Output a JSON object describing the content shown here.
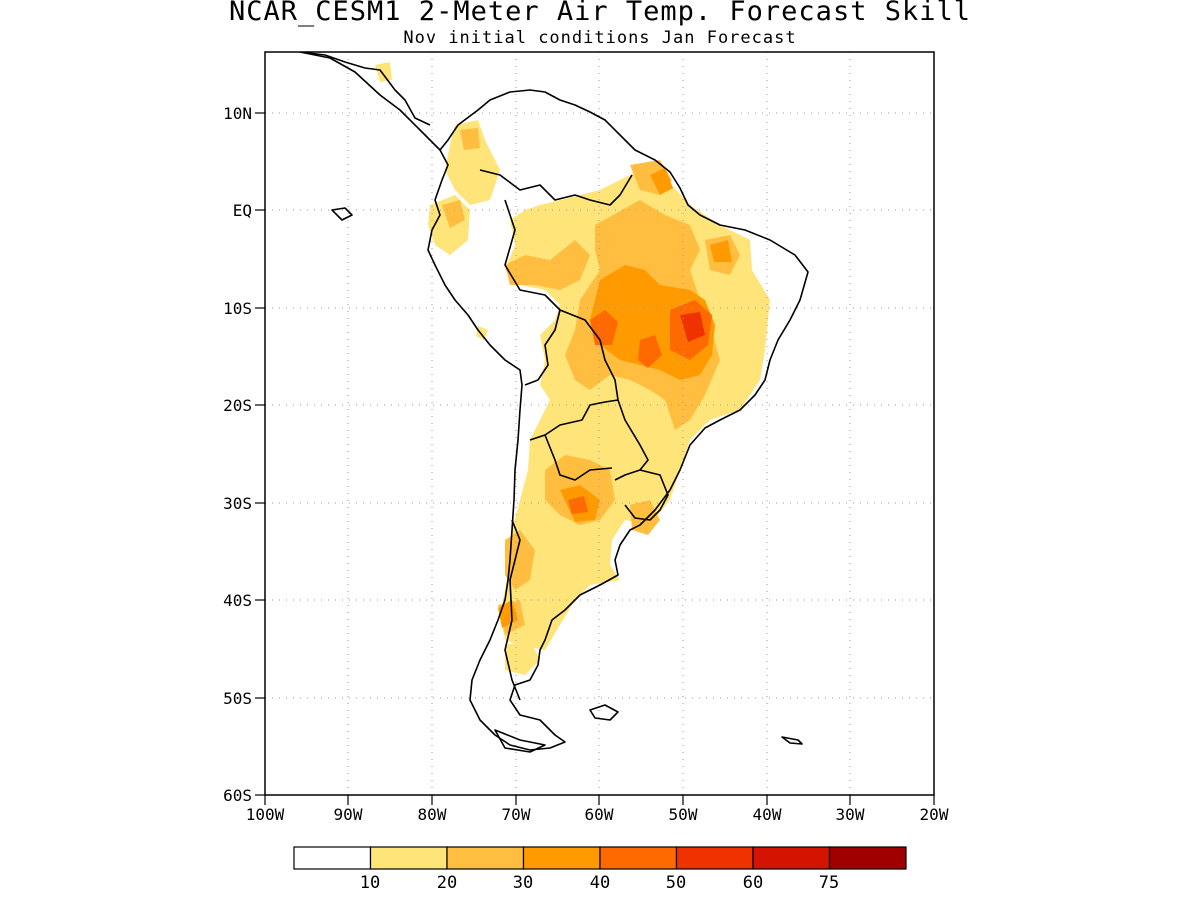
{
  "title": "NCAR_CESM1 2-Meter Air Temp. Forecast Skill",
  "subtitle": "Nov initial conditions  Jan Forecast",
  "map": {
    "lon_range": [
      -100,
      -20
    ],
    "lat_range": [
      -60,
      16
    ],
    "grid": true,
    "lat_ticks": [
      "10N",
      "EQ",
      "10S",
      "20S",
      "30S",
      "40S",
      "50S",
      "60S"
    ],
    "lon_ticks": [
      "100W",
      "90W",
      "80W",
      "70W",
      "60W",
      "50W",
      "40W",
      "30W",
      "20W"
    ]
  },
  "colorbar": {
    "colors": [
      "#ffffff",
      "#ffe47a",
      "#ffbe40",
      "#ff9a00",
      "#ff6a00",
      "#f03200",
      "#d41400",
      "#a00000"
    ],
    "labels": [
      "10",
      "20",
      "30",
      "40",
      "50",
      "60",
      "75"
    ]
  }
}
